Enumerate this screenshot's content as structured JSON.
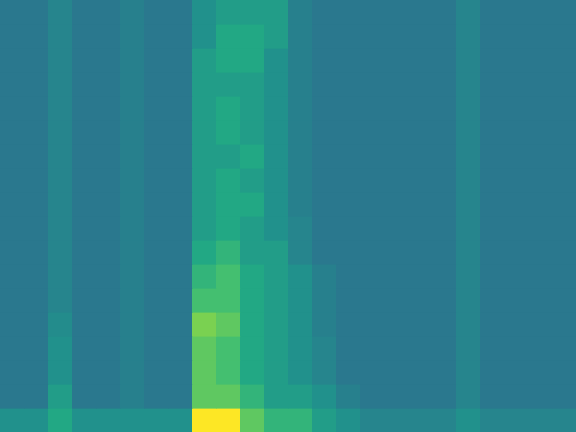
{
  "chart_data": {
    "type": "heatmap",
    "tick_labels": false,
    "color_range": [
      0,
      10
    ],
    "cells": [
      [
        5,
        5,
        6,
        5,
        5,
        5,
        5,
        5,
        10,
        10,
        7.5,
        6.5,
        6.5,
        5.5,
        5,
        4.5,
        4.5,
        4.5,
        4.5,
        5,
        4.5,
        4.5,
        4.5,
        4.5
      ],
      [
        4,
        4,
        5.5,
        4,
        4,
        4.3,
        4,
        4,
        7.5,
        7.5,
        6.5,
        5.5,
        5.5,
        5,
        4.3,
        4,
        4,
        4,
        4,
        4.5,
        4,
        4,
        4,
        4
      ],
      [
        4,
        4,
        5,
        4,
        4,
        4.3,
        4,
        4,
        7.5,
        7,
        6,
        5.5,
        5,
        4.5,
        4,
        4,
        4,
        4,
        4,
        4.5,
        4,
        4,
        4,
        4
      ],
      [
        4,
        4,
        5,
        4,
        4,
        4.3,
        4,
        4,
        7.5,
        7,
        6,
        5.5,
        5,
        4.5,
        4,
        4,
        4,
        4,
        4,
        4.5,
        4,
        4,
        4,
        4
      ],
      [
        4,
        4,
        4.8,
        4,
        4,
        4.3,
        4,
        4,
        8,
        7.5,
        6,
        5.5,
        5,
        4.3,
        4,
        4,
        4,
        4,
        4,
        4.5,
        4,
        4,
        4,
        4
      ],
      [
        4,
        4,
        4.5,
        4,
        4,
        4.3,
        4,
        4,
        7,
        7,
        6,
        5.5,
        5,
        4.3,
        4,
        4,
        4,
        4,
        4,
        4.5,
        4,
        4,
        4,
        4
      ],
      [
        4,
        4,
        4.5,
        4,
        4,
        4.3,
        4,
        4,
        6.5,
        7,
        6,
        5.5,
        5,
        4.3,
        4,
        4,
        4,
        4,
        4,
        4.5,
        4,
        4,
        4,
        4
      ],
      [
        4,
        4,
        4.5,
        4,
        4,
        4.3,
        4,
        4,
        6,
        6.5,
        5.5,
        5.5,
        4.5,
        4,
        4,
        4,
        4,
        4,
        4,
        4.5,
        4,
        4,
        4,
        4
      ],
      [
        4,
        4,
        4.5,
        4,
        4,
        4.3,
        4,
        4,
        5.5,
        6,
        5.5,
        5,
        4.5,
        4,
        4,
        4,
        4,
        4,
        4,
        4.5,
        4,
        4,
        4,
        4
      ],
      [
        4,
        4,
        4.5,
        4,
        4,
        4.3,
        4,
        4,
        5.5,
        6,
        6,
        5,
        4.3,
        4,
        4,
        4,
        4,
        4,
        4,
        4.5,
        4,
        4,
        4,
        4
      ],
      [
        4,
        4,
        4.5,
        4,
        4,
        4.3,
        4,
        4,
        5.5,
        6,
        5.5,
        5,
        4.3,
        4,
        4,
        4,
        4,
        4,
        4,
        4.5,
        4,
        4,
        4,
        4
      ],
      [
        4,
        4,
        4.5,
        4,
        4,
        4.3,
        4,
        4,
        5.5,
        5.5,
        6,
        5,
        4.3,
        4,
        4,
        4,
        4,
        4,
        4,
        4.5,
        4,
        4,
        4,
        4
      ],
      [
        4,
        4,
        4.5,
        4,
        4,
        4.3,
        4,
        4,
        5.5,
        6,
        5.5,
        5,
        4.3,
        4,
        4,
        4,
        4,
        4,
        4,
        4.5,
        4,
        4,
        4,
        4
      ],
      [
        4,
        4,
        4.5,
        4,
        4,
        4.3,
        4,
        4,
        5.5,
        6,
        5.5,
        5,
        4.3,
        4,
        4,
        4,
        4,
        4,
        4,
        4.5,
        4,
        4,
        4,
        4
      ],
      [
        4,
        4,
        4.5,
        4,
        4,
        4.3,
        4,
        4,
        5.5,
        5.5,
        5.5,
        5,
        4.3,
        4,
        4,
        4,
        4,
        4,
        4,
        4.5,
        4,
        4,
        4,
        4
      ],
      [
        4,
        4,
        4.5,
        4,
        4,
        4.3,
        4,
        4,
        5.5,
        6,
        6,
        5,
        4.3,
        4,
        4,
        4,
        4,
        4,
        4,
        4.5,
        4,
        4,
        4,
        4
      ],
      [
        4,
        4,
        4.5,
        4,
        4,
        4.3,
        4,
        4,
        5,
        6,
        6,
        5.5,
        4.3,
        4,
        4,
        4,
        4,
        4,
        4,
        4.5,
        4,
        4,
        4,
        4
      ],
      [
        4,
        4,
        4.5,
        4,
        4,
        4.3,
        4,
        4,
        5,
        5.5,
        5.5,
        5.5,
        4.3,
        4,
        4,
        4,
        4,
        4,
        4,
        4.5,
        4,
        4,
        4,
        4
      ]
    ]
  }
}
